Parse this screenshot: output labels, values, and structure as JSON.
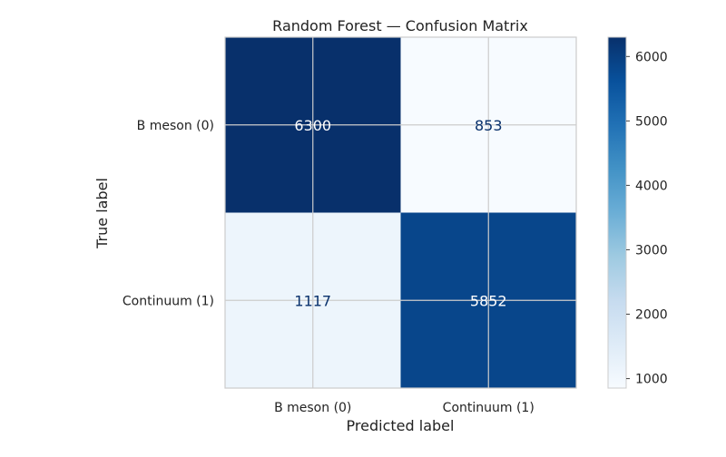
{
  "chart_data": {
    "type": "heatmap",
    "title": "Random Forest — Confusion Matrix",
    "xlabel": "Predicted label",
    "ylabel": "True label",
    "x_categories": [
      "B meson (0)",
      "Continuum (1)"
    ],
    "y_categories": [
      "B meson (0)",
      "Continuum (1)"
    ],
    "values": [
      [
        6300,
        853
      ],
      [
        1117,
        5852
      ]
    ],
    "colormap": "Blues",
    "value_range": [
      853,
      6300
    ],
    "colorbar_ticks": [
      1000,
      2000,
      3000,
      4000,
      5000,
      6000
    ],
    "grid": true,
    "colors": {
      "light_text": "#ffffff",
      "dark_text": "#08306b",
      "grid": "#cccccc",
      "axes_edge": "#cccccc"
    }
  }
}
